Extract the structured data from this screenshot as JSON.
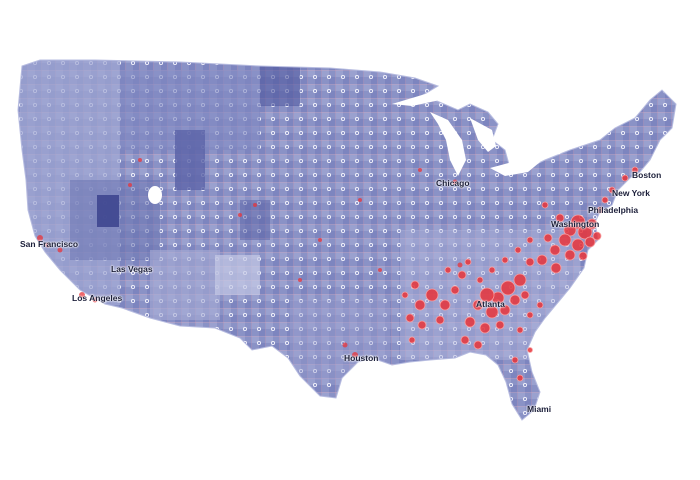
{
  "map": {
    "colors": {
      "land_dark": "#5a62a6",
      "land_mid": "#8e95c8",
      "land_light": "#bcc1e0",
      "border_line": "#e8a3b4",
      "bubble": "#e8343a",
      "bubble_stroke": "#f06a6e",
      "background": "#ffffff"
    },
    "cities": [
      {
        "id": "san-francisco",
        "name": "San Francisco"
      },
      {
        "id": "las-vegas",
        "name": "Las Vegas"
      },
      {
        "id": "los-angeles",
        "name": "Los Angeles"
      },
      {
        "id": "chicago",
        "name": "Chicago"
      },
      {
        "id": "new-york",
        "name": "New York"
      },
      {
        "id": "boston",
        "name": "Boston"
      },
      {
        "id": "washington",
        "name": "Washington"
      },
      {
        "id": "philadelphia",
        "name": "Philadelphia"
      },
      {
        "id": "atlanta",
        "name": "Atlanta"
      },
      {
        "id": "houston",
        "name": "Houston"
      },
      {
        "id": "miami",
        "name": "Miami"
      }
    ]
  }
}
